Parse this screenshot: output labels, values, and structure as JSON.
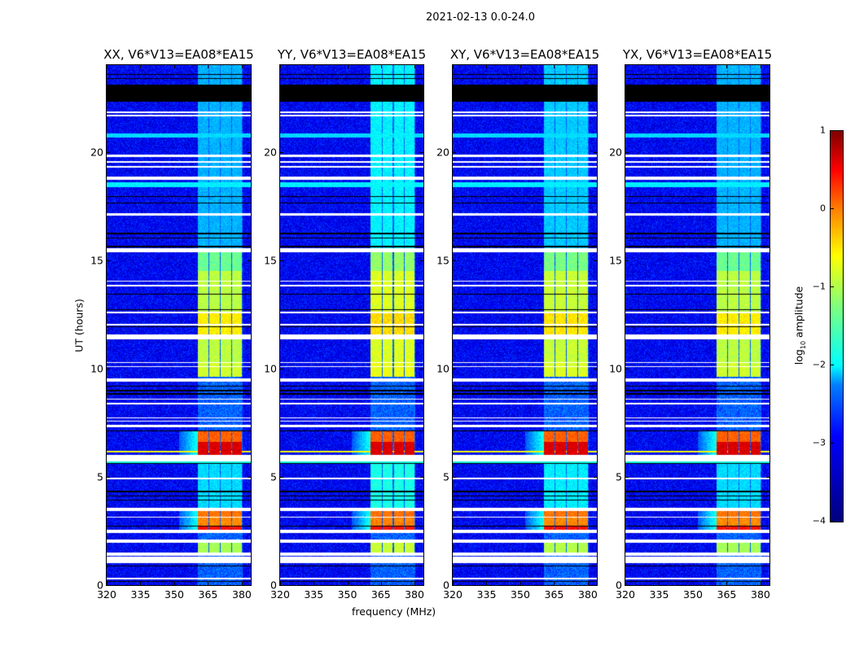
{
  "figure": {
    "suptitle": "2021-02-13 0.0-24.0",
    "xlabel": "frequency (MHz)",
    "ylabel": "UT (hours)"
  },
  "colorbar": {
    "label_prefix": "log",
    "label_sub": "10",
    "label_suffix": " amplitude",
    "range": [
      -4,
      1
    ],
    "ticks": [
      "−4",
      "−3",
      "−2",
      "−1",
      "0",
      "1"
    ],
    "tick_values": [
      -4,
      -3,
      -2,
      -1,
      0,
      1
    ],
    "colormap": "jet"
  },
  "chart_data": [
    {
      "type": "heatmap",
      "title": "XX, V6*V13=EA08*EA15",
      "intensity_scale": 1.0
    },
    {
      "type": "heatmap",
      "title": "YY, V6*V13=EA08*EA15",
      "intensity_scale": 1.15
    },
    {
      "type": "heatmap",
      "title": "XY, V6*V13=EA08*EA15",
      "intensity_scale": 1.05
    },
    {
      "type": "heatmap",
      "title": "YX, V6*V13=EA08*EA15",
      "intensity_scale": 1.0
    }
  ],
  "axes": {
    "xlim": [
      320,
      384
    ],
    "ylim": [
      0,
      24
    ],
    "xticks": [
      320,
      335,
      350,
      365,
      380
    ],
    "xtick_labels": [
      "320",
      "335",
      "350",
      "365",
      "380"
    ],
    "yticks": [
      0,
      5,
      10,
      15,
      20
    ],
    "ytick_labels": [
      "0",
      "5",
      "10",
      "15",
      "20"
    ]
  },
  "features": {
    "background_log_amp": -3.4,
    "white_flags_hours": [
      [
        21.65,
        21.72
      ],
      [
        21.8,
        21.87
      ],
      [
        19.75,
        19.85
      ],
      [
        19.5,
        19.55
      ],
      [
        19.28,
        19.33
      ],
      [
        18.72,
        18.85
      ],
      [
        17.05,
        17.18
      ],
      [
        15.38,
        15.55
      ],
      [
        14.0,
        14.05
      ],
      [
        13.8,
        13.85
      ],
      [
        12.55,
        12.62
      ],
      [
        12.0,
        12.07
      ],
      [
        11.35,
        11.55
      ],
      [
        10.25,
        10.3
      ],
      [
        10.05,
        10.1
      ],
      [
        9.4,
        9.55
      ],
      [
        8.55,
        8.6
      ],
      [
        8.35,
        8.4
      ],
      [
        7.7,
        7.74
      ],
      [
        7.55,
        7.6
      ],
      [
        7.28,
        7.4
      ],
      [
        5.72,
        6.0
      ],
      [
        4.9,
        4.95
      ],
      [
        3.4,
        3.55
      ],
      [
        3.1,
        3.15
      ],
      [
        2.4,
        2.55
      ],
      [
        1.95,
        2.12
      ],
      [
        1.35,
        1.5
      ],
      [
        1.0,
        1.3
      ],
      [
        0.28,
        0.33
      ]
    ],
    "black_flags_hours": [
      [
        22.3,
        23.1
      ],
      [
        23.35,
        23.4
      ],
      [
        23.55,
        23.6
      ],
      [
        17.9,
        17.95
      ],
      [
        17.6,
        17.65
      ],
      [
        16.2,
        16.25
      ],
      [
        16.0,
        16.05
      ],
      [
        15.6,
        15.65
      ],
      [
        13.4,
        13.45
      ],
      [
        12.7,
        12.75
      ],
      [
        11.9,
        11.95
      ],
      [
        9.15,
        9.2
      ],
      [
        8.95,
        9.0
      ],
      [
        8.8,
        8.85
      ],
      [
        7.1,
        7.15
      ],
      [
        5.6,
        5.65
      ],
      [
        4.3,
        4.35
      ],
      [
        4.1,
        4.15
      ],
      [
        3.9,
        3.95
      ],
      [
        2.7,
        2.75
      ],
      [
        2.5,
        2.55
      ],
      [
        0.85,
        0.9
      ],
      [
        0.15,
        0.2
      ]
    ],
    "broadband_bands_hours": [
      [
        20.65,
        20.85,
        -2.3
      ],
      [
        18.35,
        18.6,
        -2.2
      ],
      [
        5.6,
        5.72,
        -2.0
      ],
      [
        6.12,
        6.18,
        -0.9
      ]
    ],
    "rfi_blocks_mhz": [
      [
        360.5,
        365.3
      ],
      [
        365.7,
        370.2
      ],
      [
        370.8,
        375.2
      ],
      [
        375.6,
        380.0
      ]
    ],
    "rfi_events": [
      {
        "hours": [
          1.5,
          1.95
        ],
        "log_amp": -1.3
      },
      {
        "hours": [
          2.55,
          2.75
        ],
        "log_amp": 0.3
      },
      {
        "hours": [
          2.75,
          3.1
        ],
        "log_amp": -0.3
      },
      {
        "hours": [
          3.15,
          3.4
        ],
        "log_amp": -0.2
      },
      {
        "hours": [
          3.55,
          5.6
        ],
        "log_amp": -2.3
      },
      {
        "hours": [
          6.0,
          6.6
        ],
        "log_amp": 0.55
      },
      {
        "hours": [
          6.6,
          7.1
        ],
        "log_amp": -0.1
      },
      {
        "hours": [
          9.6,
          10.3
        ],
        "log_amp": -1.1
      },
      {
        "hours": [
          10.3,
          11.35
        ],
        "log_amp": -1.2
      },
      {
        "hours": [
          11.55,
          12.6
        ],
        "log_amp": -0.8
      },
      {
        "hours": [
          12.6,
          14.5
        ],
        "log_amp": -1.2
      },
      {
        "hours": [
          14.5,
          15.4
        ],
        "log_amp": -1.6
      },
      {
        "hours": [
          15.55,
          24.0
        ],
        "log_amp": -2.5
      }
    ]
  }
}
